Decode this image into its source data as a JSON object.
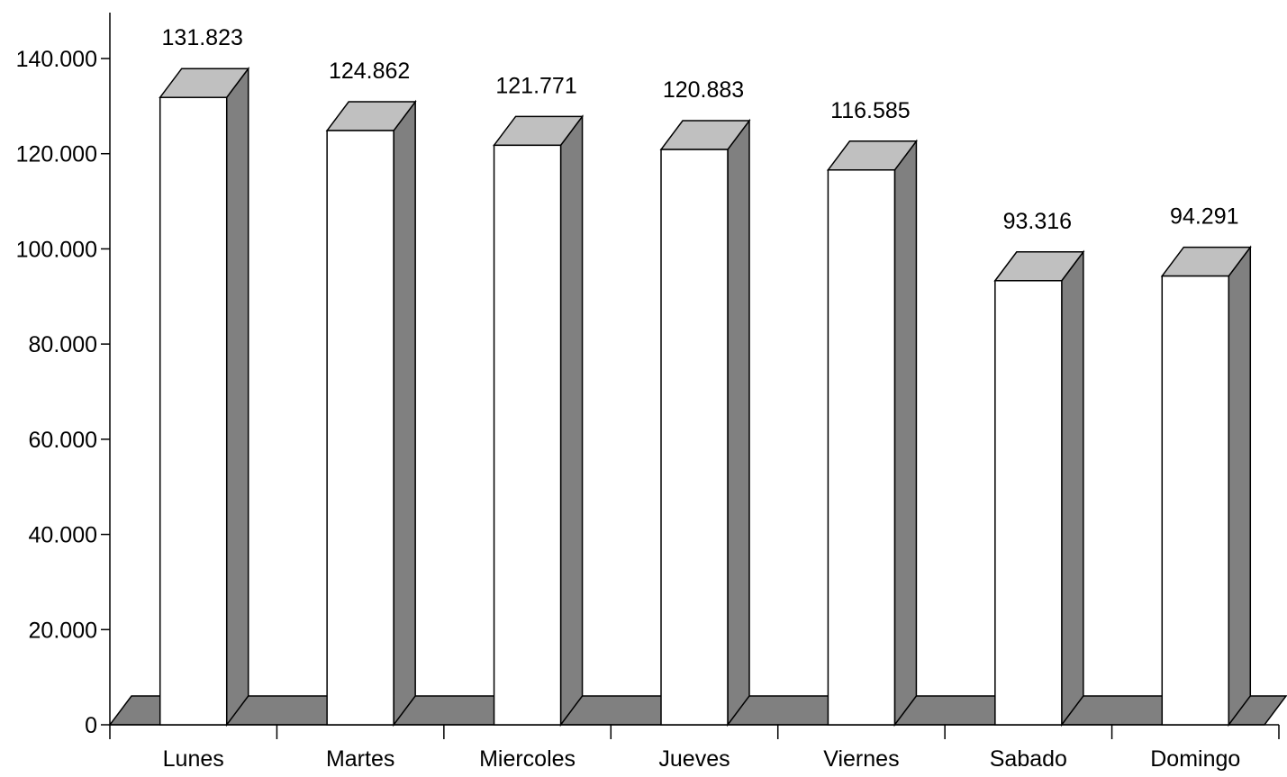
{
  "chart_data": {
    "type": "bar",
    "title": "",
    "xlabel": "",
    "ylabel": "",
    "categories": [
      "Lunes",
      "Martes",
      "Miercoles",
      "Jueves",
      "Viernes",
      "Sabado",
      "Domingo"
    ],
    "values": [
      131823,
      124862,
      121771,
      120883,
      116585,
      93316,
      94291
    ],
    "data_labels": [
      "131.823",
      "124.862",
      "121.771",
      "120.883",
      "116.585",
      "93.316",
      "94.291"
    ],
    "yticks": [
      {
        "value": 0,
        "label": "0"
      },
      {
        "value": 20000,
        "label": "20.000"
      },
      {
        "value": 40000,
        "label": "40.000"
      },
      {
        "value": 60000,
        "label": "60.000"
      },
      {
        "value": 80000,
        "label": "80.000"
      },
      {
        "value": 100000,
        "label": "100.000"
      },
      {
        "value": 120000,
        "label": "120.000"
      },
      {
        "value": 140000,
        "label": "140.000"
      }
    ],
    "ylim": [
      0,
      140000
    ],
    "grid": false,
    "legend": "none",
    "style": "3d-column",
    "colors": {
      "bar_front": "#ffffff",
      "bar_top": "#c0c0c0",
      "bar_side": "#808080",
      "floor": "#808080",
      "outline": "#000000"
    }
  }
}
